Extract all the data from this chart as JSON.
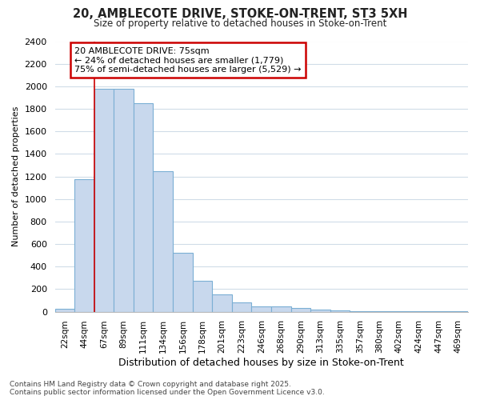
{
  "title_line1": "20, AMBLECOTE DRIVE, STOKE-ON-TRENT, ST3 5XH",
  "title_line2": "Size of property relative to detached houses in Stoke-on-Trent",
  "xlabel": "Distribution of detached houses by size in Stoke-on-Trent",
  "ylabel": "Number of detached properties",
  "categories": [
    "22sqm",
    "44sqm",
    "67sqm",
    "89sqm",
    "111sqm",
    "134sqm",
    "156sqm",
    "178sqm",
    "201sqm",
    "223sqm",
    "246sqm",
    "268sqm",
    "290sqm",
    "313sqm",
    "335sqm",
    "357sqm",
    "380sqm",
    "402sqm",
    "424sqm",
    "447sqm",
    "469sqm"
  ],
  "values": [
    25,
    1175,
    1975,
    1975,
    1850,
    1250,
    520,
    275,
    150,
    80,
    45,
    45,
    35,
    15,
    8,
    5,
    4,
    2,
    2,
    1,
    1
  ],
  "bar_color": "#c8d8ed",
  "bar_edge_color": "#7bafd4",
  "background_color": "#ffffff",
  "grid_color": "#d0dce8",
  "red_line_index": 2,
  "annotation_text_line1": "20 AMBLECOTE DRIVE: 75sqm",
  "annotation_text_line2": "← 24% of detached houses are smaller (1,779)",
  "annotation_text_line3": "75% of semi-detached houses are larger (5,529) →",
  "annotation_box_color": "#ffffff",
  "annotation_border_color": "#cc0000",
  "ylim": [
    0,
    2400
  ],
  "yticks": [
    0,
    200,
    400,
    600,
    800,
    1000,
    1200,
    1400,
    1600,
    1800,
    2000,
    2200,
    2400
  ],
  "footer_line1": "Contains HM Land Registry data © Crown copyright and database right 2025.",
  "footer_line2": "Contains public sector information licensed under the Open Government Licence v3.0."
}
